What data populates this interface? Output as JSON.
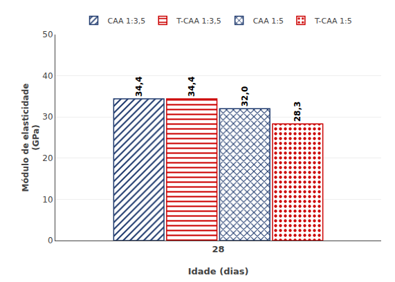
{
  "chart_data": {
    "type": "bar",
    "categories": [
      "28"
    ],
    "series": [
      {
        "name": "CAA 1:3,5",
        "color": "#1F3A6E",
        "values": [
          34.4
        ],
        "value_labels": [
          "34,4"
        ]
      },
      {
        "name": "T-CAA 1:3,5",
        "color": "#CC0000",
        "values": [
          34.4
        ],
        "value_labels": [
          "34,4"
        ]
      },
      {
        "name": "CAA 1:5",
        "color": "#1F3A6E",
        "values": [
          32.0
        ],
        "value_labels": [
          "32,0"
        ]
      },
      {
        "name": "T-CAA 1:5",
        "color": "#CC0000",
        "values": [
          28.3
        ],
        "value_labels": [
          "28,3"
        ]
      }
    ],
    "xlabel": "Idade (dias)",
    "ylabel": "Módulo de elasticidade\n(GPa)",
    "ylim": [
      0,
      50
    ],
    "yticks": [
      0,
      10,
      20,
      30,
      40,
      50
    ],
    "grid": true,
    "data_labels": true,
    "legend": "top"
  }
}
